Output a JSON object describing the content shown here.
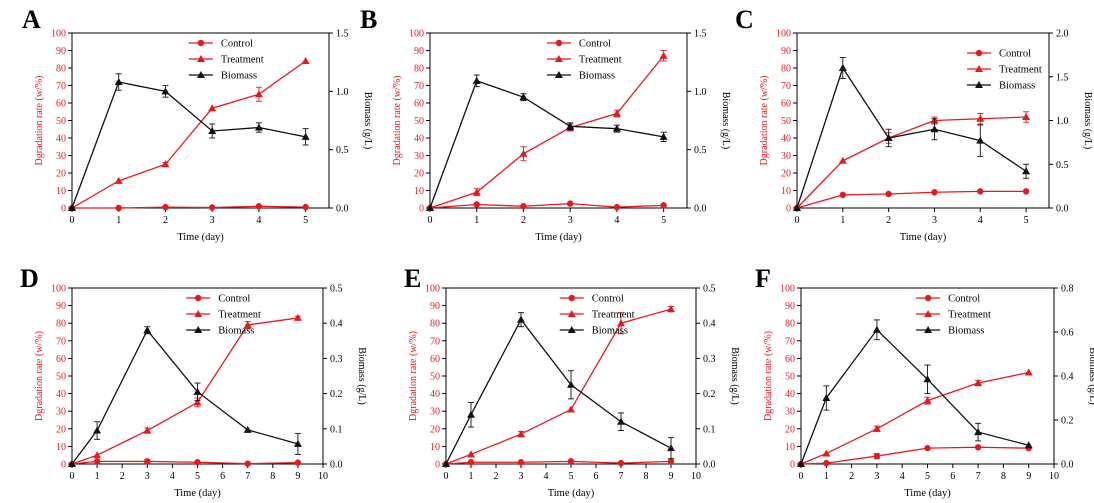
{
  "colors": {
    "degradation": "#e8191d",
    "biomass": "#111111"
  },
  "panels": [
    {
      "letter": "A",
      "x_label": "Time (day)",
      "y_label_left": "Dgradation rate (w/%)",
      "y_label_right": "Biomass (g/L)",
      "legend": [
        "Control",
        "Treatment",
        "Biomass"
      ]
    },
    {
      "letter": "B",
      "x_label": "Time (day)",
      "y_label_left": "Dgradation rate (w/%)",
      "y_label_right": "Biomass (g/L)",
      "legend": [
        "Control",
        "Treatment",
        "Biomass"
      ]
    },
    {
      "letter": "C",
      "x_label": "Time (day)",
      "y_label_left": "Dgradation rate (w/%)",
      "y_label_right": "Biomass (g/L)",
      "legend": [
        "Control",
        "Treatment",
        "Biomass"
      ]
    },
    {
      "letter": "D",
      "x_label": "Time (day)",
      "y_label_left": "Dgradation rate (w/%)",
      "y_label_right": "Biomass (g/L)",
      "legend": [
        "Control",
        "Treatment",
        "Biomass"
      ]
    },
    {
      "letter": "E",
      "x_label": "Time (day)",
      "y_label_left": "Dgradation rate (w/%)",
      "y_label_right": "Biomass (g/L)",
      "legend": [
        "Control",
        "Treatment",
        "Biomass"
      ]
    },
    {
      "letter": "F",
      "x_label": "Time (day)",
      "y_label_left": "Dgradation rate (w/%)",
      "y_label_right": "Biomass (g/L)",
      "legend": [
        "Control",
        "Treatment",
        "Biomass"
      ]
    }
  ],
  "chart_data": [
    {
      "type": "line",
      "panel": "A",
      "xlim": [
        0,
        5.5
      ],
      "x_ticks": [
        0,
        1,
        2,
        3,
        4,
        5
      ],
      "ylim_left": [
        0,
        100
      ],
      "y_ticks_left": [
        0,
        10,
        20,
        30,
        40,
        50,
        60,
        70,
        80,
        90,
        100
      ],
      "ylim_right": [
        0,
        1.5
      ],
      "y_ticks_right": [
        "0.0",
        "0.5",
        "1.0",
        "1.5"
      ],
      "legend_position": "top",
      "series": [
        {
          "name": "Control",
          "axis": "left",
          "marker": "circle",
          "x": [
            0,
            1,
            2,
            3,
            4,
            5
          ],
          "y": [
            0,
            0,
            0.5,
            0.3,
            1,
            0.5
          ],
          "err": [
            0,
            0,
            0,
            0,
            0.5,
            0
          ]
        },
        {
          "name": "Treatment",
          "axis": "left",
          "marker": "triangle",
          "x": [
            0,
            1,
            2,
            3,
            4,
            5
          ],
          "y": [
            0,
            15.5,
            25,
            57,
            65,
            84
          ],
          "err": [
            0,
            0,
            1,
            0,
            4,
            0
          ]
        },
        {
          "name": "Biomass",
          "axis": "right",
          "marker": "triangle",
          "x": [
            0,
            1,
            2,
            3,
            4,
            5
          ],
          "y": [
            0,
            1.08,
            1.0,
            0.66,
            0.69,
            0.61
          ],
          "err": [
            0,
            0.07,
            0.05,
            0.06,
            0.04,
            0.07
          ]
        }
      ]
    },
    {
      "type": "line",
      "panel": "B",
      "xlim": [
        0,
        5.5
      ],
      "x_ticks": [
        0,
        1,
        2,
        3,
        4,
        5
      ],
      "ylim_left": [
        0,
        100
      ],
      "y_ticks_left": [
        0,
        10,
        20,
        30,
        40,
        50,
        60,
        70,
        80,
        90,
        100
      ],
      "ylim_right": [
        0,
        1.5
      ],
      "y_ticks_right": [
        "0.0",
        "0.5",
        "1.0",
        "1.5"
      ],
      "legend_position": "top",
      "series": [
        {
          "name": "Control",
          "axis": "left",
          "marker": "circle",
          "x": [
            0,
            1,
            2,
            3,
            4,
            5
          ],
          "y": [
            0,
            2,
            1,
            2.5,
            0.5,
            1.5
          ],
          "err": [
            0,
            0,
            0,
            0,
            0,
            0
          ]
        },
        {
          "name": "Treatment",
          "axis": "left",
          "marker": "triangle",
          "x": [
            0,
            1,
            2,
            3,
            4,
            5
          ],
          "y": [
            0,
            9,
            31,
            46,
            54,
            87
          ],
          "err": [
            0,
            2,
            4,
            2,
            2,
            3
          ]
        },
        {
          "name": "Biomass",
          "axis": "right",
          "marker": "triangle",
          "x": [
            0,
            1,
            2,
            3,
            4,
            5
          ],
          "y": [
            0,
            1.09,
            0.95,
            0.7,
            0.68,
            0.61
          ],
          "err": [
            0,
            0.05,
            0.03,
            0.03,
            0.03,
            0.04
          ]
        }
      ]
    },
    {
      "type": "line",
      "panel": "C",
      "xlim": [
        0,
        5.5
      ],
      "x_ticks": [
        0,
        1,
        2,
        3,
        4,
        5
      ],
      "ylim_left": [
        0,
        100
      ],
      "y_ticks_left": [
        0,
        10,
        20,
        30,
        40,
        50,
        60,
        70,
        80,
        90,
        100
      ],
      "ylim_right": [
        0,
        2.0
      ],
      "y_ticks_right": [
        "0.0",
        "0.5",
        "1.0",
        "1.5",
        "2.0"
      ],
      "legend_position": "top-right",
      "series": [
        {
          "name": "Control",
          "axis": "left",
          "marker": "circle",
          "x": [
            0,
            1,
            2,
            3,
            4,
            5
          ],
          "y": [
            0,
            7.5,
            8,
            9,
            9.5,
            9.5
          ],
          "err": [
            0,
            0,
            0,
            0,
            0,
            0
          ]
        },
        {
          "name": "Treatment",
          "axis": "left",
          "marker": "triangle",
          "x": [
            0,
            1,
            2,
            3,
            4,
            5
          ],
          "y": [
            0,
            27,
            40,
            50,
            51,
            52
          ],
          "err": [
            0,
            0,
            3,
            2,
            3,
            3
          ]
        },
        {
          "name": "Biomass",
          "axis": "right",
          "marker": "triangle",
          "x": [
            0,
            1,
            2,
            3,
            4,
            5
          ],
          "y": [
            0,
            1.6,
            0.8,
            0.9,
            0.77,
            0.42
          ],
          "err": [
            0,
            0.12,
            0.1,
            0.12,
            0.18,
            0.08
          ]
        }
      ]
    },
    {
      "type": "line",
      "panel": "D",
      "xlim": [
        0,
        10
      ],
      "x_ticks": [
        0,
        1,
        2,
        3,
        4,
        5,
        6,
        7,
        8,
        9,
        10
      ],
      "ylim_left": [
        0,
        100
      ],
      "y_ticks_left": [
        0,
        10,
        20,
        30,
        40,
        50,
        60,
        70,
        80,
        90,
        100
      ],
      "ylim_right": [
        0,
        0.5
      ],
      "y_ticks_right": [
        "0.0",
        "0.1",
        "0.2",
        "0.3",
        "0.4",
        "0.5"
      ],
      "legend_position": "top",
      "series": [
        {
          "name": "Control",
          "axis": "left",
          "marker": "circle",
          "x": [
            0,
            1,
            3,
            5,
            7,
            9
          ],
          "y": [
            0,
            1.5,
            1.5,
            1,
            0.2,
            0.8
          ],
          "err": [
            0,
            0,
            1,
            0,
            0,
            0
          ]
        },
        {
          "name": "Treatment",
          "axis": "left",
          "marker": "triangle",
          "x": [
            0,
            1,
            3,
            5,
            7,
            9
          ],
          "y": [
            0,
            5,
            19,
            35,
            79,
            83
          ],
          "err": [
            0,
            0,
            1.5,
            2.5,
            2,
            1
          ]
        },
        {
          "name": "Biomass",
          "axis": "right",
          "marker": "triangle",
          "x": [
            0,
            1,
            3,
            5,
            7,
            9
          ],
          "y": [
            0,
            0.095,
            0.38,
            0.205,
            0.097,
            0.057
          ],
          "err": [
            0,
            0.025,
            0.01,
            0.025,
            0,
            0.03
          ]
        }
      ]
    },
    {
      "type": "line",
      "panel": "E",
      "xlim": [
        0,
        10
      ],
      "x_ticks": [
        0,
        1,
        2,
        3,
        4,
        5,
        6,
        7,
        8,
        9,
        10
      ],
      "ylim_left": [
        0,
        100
      ],
      "y_ticks_left": [
        0,
        10,
        20,
        30,
        40,
        50,
        60,
        70,
        80,
        90,
        100
      ],
      "ylim_right": [
        0,
        0.5
      ],
      "y_ticks_right": [
        "0.0",
        "0.1",
        "0.2",
        "0.3",
        "0.4",
        "0.5"
      ],
      "legend_position": "top",
      "series": [
        {
          "name": "Control",
          "axis": "left",
          "marker": "circle",
          "x": [
            0,
            1,
            3,
            5,
            7,
            9
          ],
          "y": [
            0,
            1,
            1,
            1.5,
            0.5,
            1.5
          ],
          "err": [
            0,
            0,
            0,
            0,
            0,
            0
          ]
        },
        {
          "name": "Treatment",
          "axis": "left",
          "marker": "triangle",
          "x": [
            0,
            1,
            3,
            5,
            7,
            9
          ],
          "y": [
            0,
            5.5,
            17,
            31,
            80,
            88
          ],
          "err": [
            0,
            0,
            1.5,
            0,
            6,
            1.5
          ]
        },
        {
          "name": "Biomass",
          "axis": "right",
          "marker": "triangle",
          "x": [
            0,
            1,
            3,
            5,
            7,
            9
          ],
          "y": [
            0,
            0.14,
            0.41,
            0.225,
            0.12,
            0.045
          ],
          "err": [
            0,
            0.035,
            0.02,
            0.04,
            0.025,
            0.03
          ]
        }
      ]
    },
    {
      "type": "line",
      "panel": "F",
      "xlim": [
        0,
        10
      ],
      "x_ticks": [
        0,
        1,
        2,
        3,
        4,
        5,
        6,
        7,
        8,
        9,
        10
      ],
      "ylim_left": [
        0,
        100
      ],
      "y_ticks_left": [
        0,
        10,
        20,
        30,
        40,
        50,
        60,
        70,
        80,
        90,
        100
      ],
      "ylim_right": [
        0,
        0.8
      ],
      "y_ticks_right": [
        "0.0",
        "0.2",
        "0.4",
        "0.6",
        "0.8"
      ],
      "legend_position": "top",
      "series": [
        {
          "name": "Control",
          "axis": "left",
          "marker": "circle",
          "x": [
            0,
            1,
            3,
            5,
            7,
            9
          ],
          "y": [
            0,
            0.5,
            4.5,
            9,
            9.5,
            9
          ],
          "err": [
            0,
            0,
            1.5,
            0,
            0,
            0
          ]
        },
        {
          "name": "Treatment",
          "axis": "left",
          "marker": "triangle",
          "x": [
            0,
            1,
            3,
            5,
            7,
            9
          ],
          "y": [
            0,
            6,
            20,
            36,
            46,
            52
          ],
          "err": [
            0,
            0,
            1.5,
            2,
            1.5,
            0
          ]
        },
        {
          "name": "Biomass",
          "axis": "right",
          "marker": "triangle",
          "x": [
            0,
            1,
            3,
            5,
            7,
            9
          ],
          "y": [
            0,
            0.3,
            0.61,
            0.385,
            0.145,
            0.085
          ],
          "err": [
            0,
            0.055,
            0.045,
            0.065,
            0.04,
            0
          ]
        }
      ]
    }
  ]
}
